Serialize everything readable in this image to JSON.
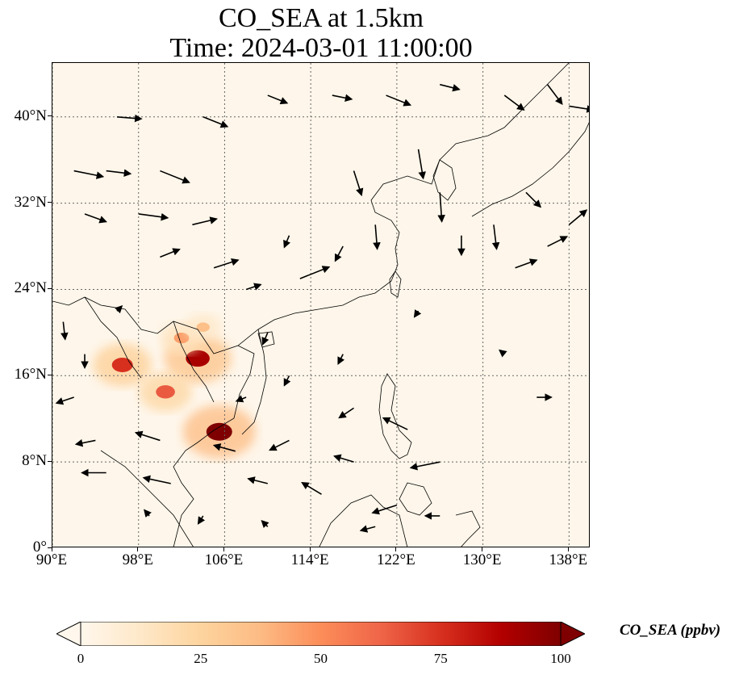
{
  "title": {
    "line1": "CO_SEA at 1.5km",
    "line2": "Time: 2024-03-01 11:00:00"
  },
  "map": {
    "extent": {
      "lon": [
        90,
        140
      ],
      "lat": [
        0,
        45
      ]
    },
    "lat_ticks": [
      {
        "value": 0,
        "label": "0°"
      },
      {
        "value": 8,
        "label": "8°N"
      },
      {
        "value": 16,
        "label": "16°N"
      },
      {
        "value": 24,
        "label": "24°N"
      },
      {
        "value": 32,
        "label": "32°N"
      },
      {
        "value": 40,
        "label": "40°N"
      }
    ],
    "lon_ticks": [
      {
        "value": 90,
        "label": "90°E"
      },
      {
        "value": 98,
        "label": "98°E"
      },
      {
        "value": 106,
        "label": "106°E"
      },
      {
        "value": 114,
        "label": "114°E"
      },
      {
        "value": 122,
        "label": "122°E"
      },
      {
        "value": 130,
        "label": "130°E"
      },
      {
        "value": 138,
        "label": "138°E"
      }
    ],
    "gridlines": true,
    "hotspots": [
      {
        "lon": 103.5,
        "lat": 17.6,
        "value": 90
      },
      {
        "lon": 105.5,
        "lat": 10.8,
        "value": 100
      },
      {
        "lon": 96.5,
        "lat": 17.0,
        "value": 75
      },
      {
        "lon": 100.5,
        "lat": 14.5,
        "value": 65
      },
      {
        "lon": 102.0,
        "lat": 19.5,
        "value": 45
      },
      {
        "lon": 104.0,
        "lat": 20.5,
        "value": 35
      }
    ],
    "wind_vectors": [
      {
        "lon": 92,
        "lat": 35,
        "u": 3,
        "v": -0.6
      },
      {
        "lon": 95,
        "lat": 35,
        "u": 2.5,
        "v": -0.3
      },
      {
        "lon": 100,
        "lat": 35,
        "u": 3,
        "v": -1.2
      },
      {
        "lon": 93,
        "lat": 31,
        "u": 2.2,
        "v": -0.8
      },
      {
        "lon": 98,
        "lat": 31,
        "u": 3,
        "v": -0.4
      },
      {
        "lon": 103,
        "lat": 30,
        "u": 2.5,
        "v": 0.6
      },
      {
        "lon": 100,
        "lat": 27,
        "u": 2,
        "v": 0.8
      },
      {
        "lon": 105,
        "lat": 26,
        "u": 2.5,
        "v": 0.8
      },
      {
        "lon": 108,
        "lat": 24,
        "u": 1.5,
        "v": 0.5
      },
      {
        "lon": 113,
        "lat": 25,
        "u": 3,
        "v": 1.2
      },
      {
        "lon": 96,
        "lat": 40,
        "u": 2.5,
        "v": -0.2
      },
      {
        "lon": 104,
        "lat": 40,
        "u": 2.5,
        "v": -1
      },
      {
        "lon": 110,
        "lat": 42,
        "u": 2,
        "v": -0.8
      },
      {
        "lon": 116,
        "lat": 42,
        "u": 2,
        "v": -0.4
      },
      {
        "lon": 121,
        "lat": 42,
        "u": 2.5,
        "v": -1
      },
      {
        "lon": 126,
        "lat": 43,
        "u": 2,
        "v": -0.5
      },
      {
        "lon": 132,
        "lat": 42,
        "u": 2,
        "v": -1.5
      },
      {
        "lon": 136,
        "lat": 43,
        "u": 1.5,
        "v": -2
      },
      {
        "lon": 138,
        "lat": 41,
        "u": 2.5,
        "v": -0.4
      },
      {
        "lon": 118,
        "lat": 35,
        "u": 0.8,
        "v": -2.5
      },
      {
        "lon": 124,
        "lat": 37,
        "u": 0.5,
        "v": -3
      },
      {
        "lon": 126,
        "lat": 33,
        "u": 0.2,
        "v": -3
      },
      {
        "lon": 128,
        "lat": 29,
        "u": 0,
        "v": -2
      },
      {
        "lon": 120,
        "lat": 30,
        "u": 0.2,
        "v": -2.5
      },
      {
        "lon": 131,
        "lat": 30,
        "u": 0.3,
        "v": -2.5
      },
      {
        "lon": 134,
        "lat": 33,
        "u": 1.5,
        "v": -1.5
      },
      {
        "lon": 136,
        "lat": 28,
        "u": 2,
        "v": 1
      },
      {
        "lon": 133,
        "lat": 26,
        "u": 2.2,
        "v": 0.8
      },
      {
        "lon": 138,
        "lat": 30,
        "u": 1.8,
        "v": 1.5
      },
      {
        "lon": 117,
        "lat": 28,
        "u": -0.8,
        "v": -1.5
      },
      {
        "lon": 112,
        "lat": 29,
        "u": -0.5,
        "v": -1.2
      },
      {
        "lon": 117,
        "lat": 18,
        "u": -0.5,
        "v": -1
      },
      {
        "lon": 112,
        "lat": 16,
        "u": -0.5,
        "v": -1
      },
      {
        "lon": 110,
        "lat": 20,
        "u": -0.5,
        "v": -1.2
      },
      {
        "lon": 124,
        "lat": 22,
        "u": -0.4,
        "v": -0.6
      },
      {
        "lon": 118,
        "lat": 13,
        "u": -1.5,
        "v": -1
      },
      {
        "lon": 112,
        "lat": 10,
        "u": -2,
        "v": -1
      },
      {
        "lon": 107,
        "lat": 9,
        "u": -2.2,
        "v": 0.6
      },
      {
        "lon": 100,
        "lat": 10,
        "u": -2.5,
        "v": 0.8
      },
      {
        "lon": 94,
        "lat": 10,
        "u": -2,
        "v": -0.4
      },
      {
        "lon": 92,
        "lat": 14,
        "u": -1.8,
        "v": -0.6
      },
      {
        "lon": 95,
        "lat": 7,
        "u": -2.5,
        "v": 0
      },
      {
        "lon": 101,
        "lat": 6,
        "u": -2.8,
        "v": 0.6
      },
      {
        "lon": 110,
        "lat": 6,
        "u": -2,
        "v": 0.5
      },
      {
        "lon": 115,
        "lat": 5,
        "u": -2,
        "v": 1.2
      },
      {
        "lon": 122,
        "lat": 4,
        "u": -2.5,
        "v": -0.8
      },
      {
        "lon": 118,
        "lat": 8,
        "u": -2,
        "v": 0.6
      },
      {
        "lon": 126,
        "lat": 8,
        "u": -3,
        "v": -0.6
      },
      {
        "lon": 123,
        "lat": 11,
        "u": -2.5,
        "v": 1.2
      },
      {
        "lon": 135,
        "lat": 14,
        "u": 1.5,
        "v": 0
      },
      {
        "lon": 132,
        "lat": 18,
        "u": -0.5,
        "v": 0.4
      },
      {
        "lon": 126,
        "lat": 3,
        "u": -1.5,
        "v": 0
      },
      {
        "lon": 110,
        "lat": 2,
        "u": -0.6,
        "v": 0.6
      },
      {
        "lon": 120,
        "lat": 2,
        "u": -1.5,
        "v": -0.4
      },
      {
        "lon": 91,
        "lat": 21,
        "u": 0.2,
        "v": -1.8
      },
      {
        "lon": 93,
        "lat": 18,
        "u": 0,
        "v": -1.4
      },
      {
        "lon": 99,
        "lat": 3,
        "u": -0.5,
        "v": 0.6
      },
      {
        "lon": 104,
        "lat": 3,
        "u": -0.5,
        "v": -0.8
      },
      {
        "lon": 108,
        "lat": 14,
        "u": -1,
        "v": -0.4
      },
      {
        "lon": 96,
        "lat": 22,
        "u": 0.5,
        "v": 0.5
      }
    ]
  },
  "colorbar": {
    "title": "CO_SEA (ppbv)",
    "min": 0,
    "max": 100,
    "ticks": [
      "0",
      "25",
      "50",
      "75",
      "100"
    ],
    "colors": [
      "#fff7ec",
      "#fee8c8",
      "#fdd49e",
      "#fdbb84",
      "#fc8d59",
      "#ef6548",
      "#d7301f",
      "#b30000",
      "#7f0000"
    ]
  }
}
